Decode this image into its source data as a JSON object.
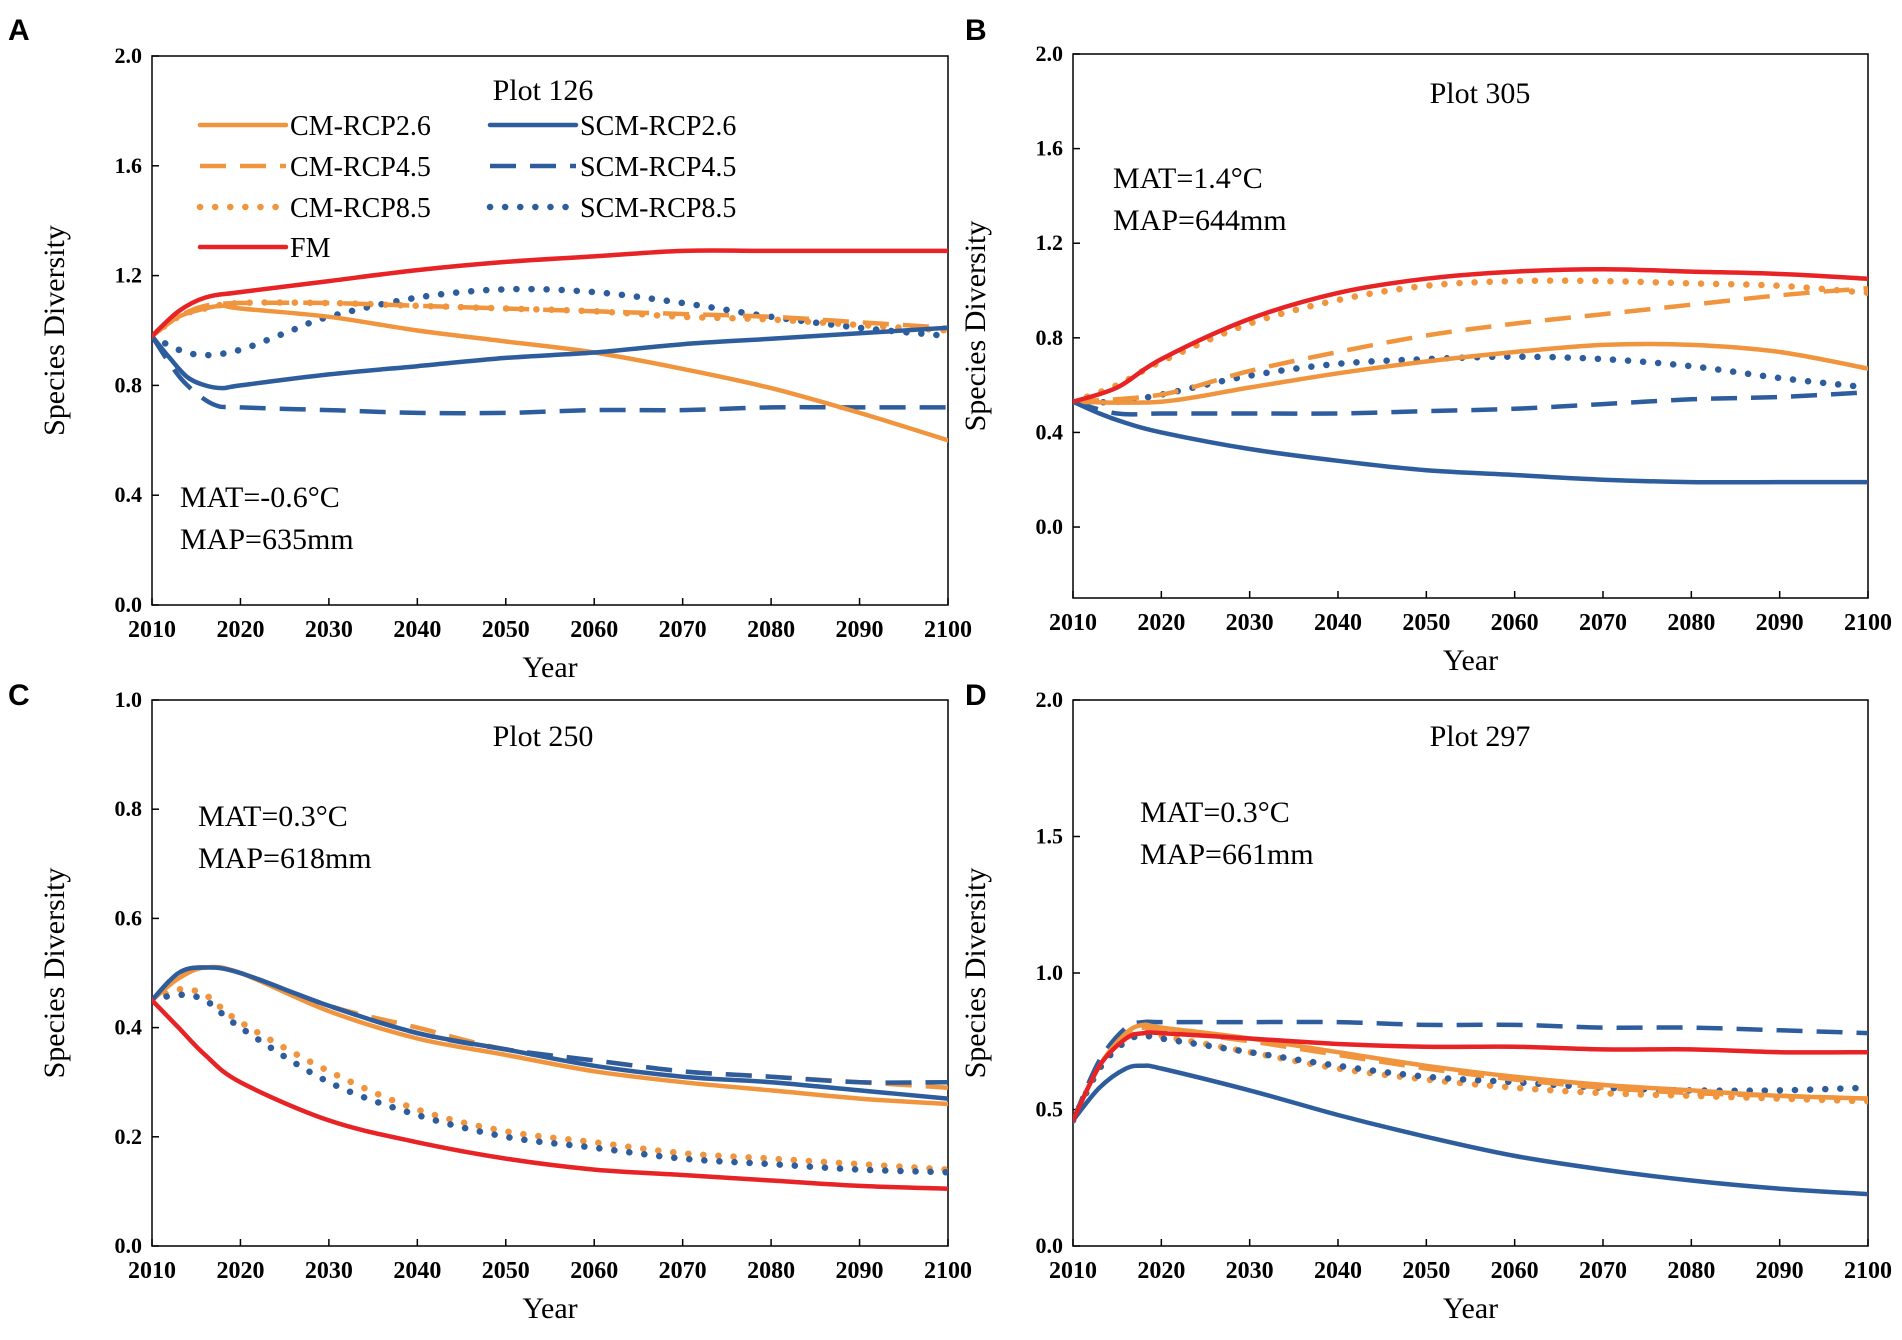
{
  "colors": {
    "CM": "#f0953d",
    "SCM": "#2e5d9e",
    "FM": "#e82325",
    "axis": "#000000"
  },
  "legend": {
    "items": [
      {
        "key": "CM-RCP2.6",
        "label": "CM-RCP2.6",
        "color": "#f0953d",
        "style": "solid"
      },
      {
        "key": "SCM-RCP2.6",
        "label": "SCM-RCP2.6",
        "color": "#2e5d9e",
        "style": "solid"
      },
      {
        "key": "CM-RCP4.5",
        "label": "CM-RCP4.5",
        "color": "#f0953d",
        "style": "dashed"
      },
      {
        "key": "SCM-RCP4.5",
        "label": "SCM-RCP4.5",
        "color": "#2e5d9e",
        "style": "dashed"
      },
      {
        "key": "CM-RCP8.5",
        "label": "CM-RCP8.5",
        "color": "#f0953d",
        "style": "dotted"
      },
      {
        "key": "SCM-RCP8.5",
        "label": "SCM-RCP8.5",
        "color": "#2e5d9e",
        "style": "dotted"
      },
      {
        "key": "FM",
        "label": "FM",
        "color": "#e82325",
        "style": "solid"
      }
    ]
  },
  "chart_data": [
    {
      "panel": "A",
      "type": "line",
      "title": "Plot 126",
      "xlabel": "Year",
      "ylabel": "Species Diversity",
      "xlim": [
        2010,
        2100
      ],
      "ylim": [
        0,
        2
      ],
      "xticks": [
        2010,
        2020,
        2030,
        2040,
        2050,
        2060,
        2070,
        2080,
        2090,
        2100
      ],
      "yticks": [
        0,
        0.4,
        0.8,
        1.2,
        1.6,
        2.0
      ],
      "ytick_labels": [
        "0.0",
        "0.4",
        "0.8",
        "1.2",
        "1.6",
        "2.0"
      ],
      "annotation": [
        "MAT=-0.6°C",
        "MAP=635mm"
      ],
      "series": [
        {
          "name": "CM-RCP2.6",
          "x": [
            2010,
            2013,
            2016,
            2018,
            2020,
            2030,
            2040,
            2050,
            2060,
            2070,
            2080,
            2090,
            2100
          ],
          "values": [
            0.98,
            1.05,
            1.08,
            1.09,
            1.08,
            1.05,
            1.0,
            0.96,
            0.92,
            0.86,
            0.79,
            0.7,
            0.6
          ]
        },
        {
          "name": "CM-RCP4.5",
          "x": [
            2010,
            2013,
            2016,
            2020,
            2030,
            2040,
            2050,
            2060,
            2070,
            2080,
            2090,
            2100
          ],
          "values": [
            0.98,
            1.05,
            1.09,
            1.1,
            1.1,
            1.09,
            1.08,
            1.07,
            1.06,
            1.05,
            1.03,
            1.01
          ]
        },
        {
          "name": "CM-RCP8.5",
          "x": [
            2010,
            2013,
            2016,
            2020,
            2030,
            2040,
            2050,
            2060,
            2070,
            2080,
            2090,
            2100
          ],
          "values": [
            0.98,
            1.05,
            1.08,
            1.1,
            1.1,
            1.09,
            1.08,
            1.07,
            1.05,
            1.04,
            1.02,
            1.0
          ]
        },
        {
          "name": "SCM-RCP2.6",
          "x": [
            2010,
            2012,
            2014,
            2016,
            2018,
            2020,
            2030,
            2040,
            2050,
            2060,
            2070,
            2080,
            2090,
            2100
          ],
          "values": [
            0.98,
            0.9,
            0.83,
            0.8,
            0.79,
            0.8,
            0.84,
            0.87,
            0.9,
            0.92,
            0.95,
            0.97,
            0.99,
            1.01
          ]
        },
        {
          "name": "SCM-RCP4.5",
          "x": [
            2010,
            2012,
            2014,
            2017,
            2020,
            2030,
            2040,
            2050,
            2060,
            2070,
            2080,
            2090,
            2100
          ],
          "values": [
            0.98,
            0.88,
            0.8,
            0.73,
            0.72,
            0.71,
            0.7,
            0.7,
            0.71,
            0.71,
            0.72,
            0.72,
            0.72
          ]
        },
        {
          "name": "SCM-RCP8.5",
          "x": [
            2010,
            2013,
            2016,
            2020,
            2025,
            2030,
            2040,
            2050,
            2060,
            2070,
            2080,
            2090,
            2100
          ],
          "values": [
            0.98,
            0.93,
            0.91,
            0.93,
            0.99,
            1.05,
            1.12,
            1.15,
            1.14,
            1.1,
            1.05,
            1.01,
            0.98
          ]
        },
        {
          "name": "FM",
          "x": [
            2010,
            2013,
            2016,
            2020,
            2030,
            2040,
            2050,
            2060,
            2070,
            2080,
            2090,
            2100
          ],
          "values": [
            0.98,
            1.07,
            1.12,
            1.14,
            1.18,
            1.22,
            1.25,
            1.27,
            1.29,
            1.29,
            1.29,
            1.29
          ]
        }
      ]
    },
    {
      "panel": "B",
      "type": "line",
      "title": "Plot 305",
      "xlabel": "Year",
      "ylabel": "Species Diversity",
      "xlim": [
        2010,
        2100
      ],
      "ylim": [
        -0.3,
        2.0
      ],
      "xticks": [
        2010,
        2020,
        2030,
        2040,
        2050,
        2060,
        2070,
        2080,
        2090,
        2100
      ],
      "yticks": [
        0,
        0.4,
        0.8,
        1.2,
        1.6,
        2.0
      ],
      "ytick_labels": [
        "0.0",
        "0.4",
        "0.8",
        "1.2",
        "1.6",
        "2.0"
      ],
      "annotation": [
        "MAT=1.4°C",
        "MAP=644mm"
      ],
      "series": [
        {
          "name": "CM-RCP2.6",
          "x": [
            2010,
            2020,
            2030,
            2040,
            2050,
            2060,
            2070,
            2080,
            2090,
            2100
          ],
          "values": [
            0.53,
            0.53,
            0.59,
            0.65,
            0.7,
            0.74,
            0.77,
            0.77,
            0.74,
            0.67
          ]
        },
        {
          "name": "CM-RCP4.5",
          "x": [
            2010,
            2020,
            2030,
            2040,
            2050,
            2060,
            2070,
            2080,
            2090,
            2100
          ],
          "values": [
            0.53,
            0.56,
            0.66,
            0.74,
            0.81,
            0.86,
            0.9,
            0.94,
            0.98,
            1.01
          ]
        },
        {
          "name": "CM-RCP8.5",
          "x": [
            2010,
            2015,
            2020,
            2030,
            2040,
            2050,
            2060,
            2070,
            2080,
            2090,
            2100
          ],
          "values": [
            0.53,
            0.6,
            0.7,
            0.86,
            0.96,
            1.02,
            1.04,
            1.04,
            1.03,
            1.02,
            0.99
          ]
        },
        {
          "name": "SCM-RCP2.6",
          "x": [
            2010,
            2013,
            2016,
            2020,
            2030,
            2040,
            2050,
            2060,
            2070,
            2080,
            2090,
            2100
          ],
          "values": [
            0.53,
            0.48,
            0.44,
            0.4,
            0.33,
            0.28,
            0.24,
            0.22,
            0.2,
            0.19,
            0.19,
            0.19
          ]
        },
        {
          "name": "SCM-RCP4.5",
          "x": [
            2010,
            2015,
            2020,
            2030,
            2040,
            2050,
            2060,
            2070,
            2080,
            2090,
            2100
          ],
          "values": [
            0.53,
            0.48,
            0.48,
            0.48,
            0.48,
            0.49,
            0.5,
            0.52,
            0.54,
            0.55,
            0.57
          ]
        },
        {
          "name": "SCM-RCP8.5",
          "x": [
            2010,
            2015,
            2020,
            2030,
            2040,
            2050,
            2060,
            2070,
            2080,
            2090,
            2100
          ],
          "values": [
            0.53,
            0.53,
            0.56,
            0.64,
            0.69,
            0.71,
            0.72,
            0.71,
            0.68,
            0.63,
            0.59
          ]
        },
        {
          "name": "FM",
          "x": [
            2010,
            2015,
            2020,
            2030,
            2040,
            2050,
            2060,
            2070,
            2080,
            2090,
            2100
          ],
          "values": [
            0.53,
            0.59,
            0.71,
            0.88,
            0.99,
            1.05,
            1.08,
            1.09,
            1.08,
            1.07,
            1.05
          ]
        }
      ]
    },
    {
      "panel": "C",
      "type": "line",
      "title": "Plot 250",
      "xlabel": "Year",
      "ylabel": "Species Diversity",
      "xlim": [
        2010,
        2100
      ],
      "ylim": [
        0,
        1.0
      ],
      "xticks": [
        2010,
        2020,
        2030,
        2040,
        2050,
        2060,
        2070,
        2080,
        2090,
        2100
      ],
      "yticks": [
        0,
        0.2,
        0.4,
        0.6,
        0.8,
        1.0
      ],
      "ytick_labels": [
        "0.0",
        "0.2",
        "0.4",
        "0.6",
        "0.8",
        "1.0"
      ],
      "annotation": [
        "MAT=0.3°C",
        "MAP=618mm"
      ],
      "series": [
        {
          "name": "CM-RCP2.6",
          "x": [
            2010,
            2013,
            2016,
            2020,
            2030,
            2040,
            2050,
            2060,
            2070,
            2080,
            2090,
            2100
          ],
          "values": [
            0.45,
            0.49,
            0.51,
            0.5,
            0.43,
            0.38,
            0.35,
            0.32,
            0.3,
            0.285,
            0.27,
            0.26
          ]
        },
        {
          "name": "CM-RCP4.5",
          "x": [
            2010,
            2013,
            2016,
            2020,
            2030,
            2040,
            2050,
            2060,
            2070,
            2080,
            2090,
            2100
          ],
          "values": [
            0.45,
            0.5,
            0.51,
            0.5,
            0.44,
            0.4,
            0.36,
            0.34,
            0.32,
            0.31,
            0.3,
            0.29
          ]
        },
        {
          "name": "CM-RCP8.5",
          "x": [
            2010,
            2013,
            2016,
            2020,
            2030,
            2040,
            2050,
            2060,
            2070,
            2080,
            2090,
            2100
          ],
          "values": [
            0.45,
            0.47,
            0.46,
            0.41,
            0.32,
            0.25,
            0.21,
            0.19,
            0.17,
            0.16,
            0.15,
            0.14
          ]
        },
        {
          "name": "SCM-RCP2.6",
          "x": [
            2010,
            2013,
            2016,
            2020,
            2030,
            2040,
            2050,
            2060,
            2070,
            2080,
            2090,
            2100
          ],
          "values": [
            0.45,
            0.5,
            0.51,
            0.5,
            0.44,
            0.39,
            0.36,
            0.33,
            0.31,
            0.3,
            0.285,
            0.27
          ]
        },
        {
          "name": "SCM-RCP4.5",
          "x": [
            2010,
            2013,
            2016,
            2020,
            2030,
            2040,
            2050,
            2060,
            2070,
            2080,
            2090,
            2100
          ],
          "values": [
            0.45,
            0.5,
            0.51,
            0.5,
            0.44,
            0.39,
            0.36,
            0.34,
            0.32,
            0.31,
            0.3,
            0.3
          ]
        },
        {
          "name": "SCM-RCP8.5",
          "x": [
            2010,
            2013,
            2016,
            2020,
            2030,
            2040,
            2050,
            2060,
            2070,
            2080,
            2090,
            2100
          ],
          "values": [
            0.45,
            0.46,
            0.45,
            0.4,
            0.3,
            0.24,
            0.2,
            0.18,
            0.16,
            0.15,
            0.14,
            0.135
          ]
        },
        {
          "name": "FM",
          "x": [
            2010,
            2013,
            2016,
            2020,
            2030,
            2040,
            2050,
            2060,
            2070,
            2080,
            2090,
            2100
          ],
          "values": [
            0.45,
            0.4,
            0.35,
            0.3,
            0.23,
            0.19,
            0.16,
            0.14,
            0.13,
            0.12,
            0.11,
            0.105
          ]
        }
      ]
    },
    {
      "panel": "D",
      "type": "line",
      "title": "Plot 297",
      "xlabel": "Year",
      "ylabel": "Species Diversity",
      "xlim": [
        2010,
        2100
      ],
      "ylim": [
        0,
        2.0
      ],
      "xticks": [
        2010,
        2020,
        2030,
        2040,
        2050,
        2060,
        2070,
        2080,
        2090,
        2100
      ],
      "yticks": [
        0,
        0.5,
        1.0,
        1.5,
        2.0
      ],
      "ytick_labels": [
        "0.0",
        "0.5",
        "1.0",
        "1.5",
        "2.0"
      ],
      "annotation": [
        "MAT=0.3°C",
        "MAP=661mm"
      ],
      "series": [
        {
          "name": "CM-RCP2.6",
          "x": [
            2010,
            2013,
            2016,
            2018,
            2020,
            2030,
            2040,
            2050,
            2060,
            2070,
            2080,
            2090,
            2100
          ],
          "values": [
            0.46,
            0.66,
            0.78,
            0.81,
            0.8,
            0.76,
            0.71,
            0.66,
            0.62,
            0.59,
            0.57,
            0.55,
            0.54
          ]
        },
        {
          "name": "CM-RCP4.5",
          "x": [
            2010,
            2013,
            2016,
            2018,
            2020,
            2030,
            2040,
            2050,
            2060,
            2070,
            2080,
            2090,
            2100
          ],
          "values": [
            0.46,
            0.66,
            0.78,
            0.8,
            0.79,
            0.75,
            0.7,
            0.65,
            0.61,
            0.58,
            0.56,
            0.55,
            0.54
          ]
        },
        {
          "name": "CM-RCP8.5",
          "x": [
            2010,
            2013,
            2016,
            2018,
            2020,
            2030,
            2040,
            2050,
            2060,
            2070,
            2080,
            2090,
            2100
          ],
          "values": [
            0.46,
            0.65,
            0.76,
            0.78,
            0.77,
            0.71,
            0.65,
            0.61,
            0.58,
            0.56,
            0.55,
            0.54,
            0.53
          ]
        },
        {
          "name": "SCM-RCP2.6",
          "x": [
            2010,
            2013,
            2016,
            2018,
            2020,
            2030,
            2040,
            2050,
            2060,
            2070,
            2080,
            2090,
            2100
          ],
          "values": [
            0.46,
            0.58,
            0.65,
            0.66,
            0.65,
            0.57,
            0.48,
            0.4,
            0.33,
            0.28,
            0.24,
            0.21,
            0.19
          ]
        },
        {
          "name": "SCM-RCP4.5",
          "x": [
            2010,
            2013,
            2016,
            2018,
            2020,
            2030,
            2040,
            2050,
            2060,
            2070,
            2080,
            2090,
            2100
          ],
          "values": [
            0.46,
            0.68,
            0.8,
            0.82,
            0.82,
            0.82,
            0.82,
            0.81,
            0.81,
            0.8,
            0.8,
            0.79,
            0.78
          ]
        },
        {
          "name": "SCM-RCP8.5",
          "x": [
            2010,
            2013,
            2016,
            2018,
            2020,
            2030,
            2040,
            2050,
            2060,
            2070,
            2080,
            2090,
            2100
          ],
          "values": [
            0.46,
            0.65,
            0.75,
            0.77,
            0.76,
            0.71,
            0.66,
            0.62,
            0.6,
            0.58,
            0.57,
            0.57,
            0.58
          ]
        },
        {
          "name": "FM",
          "x": [
            2010,
            2013,
            2016,
            2018,
            2020,
            2030,
            2040,
            2050,
            2060,
            2070,
            2080,
            2090,
            2100
          ],
          "values": [
            0.46,
            0.66,
            0.76,
            0.78,
            0.78,
            0.76,
            0.74,
            0.73,
            0.73,
            0.72,
            0.72,
            0.71,
            0.71
          ]
        }
      ]
    }
  ]
}
